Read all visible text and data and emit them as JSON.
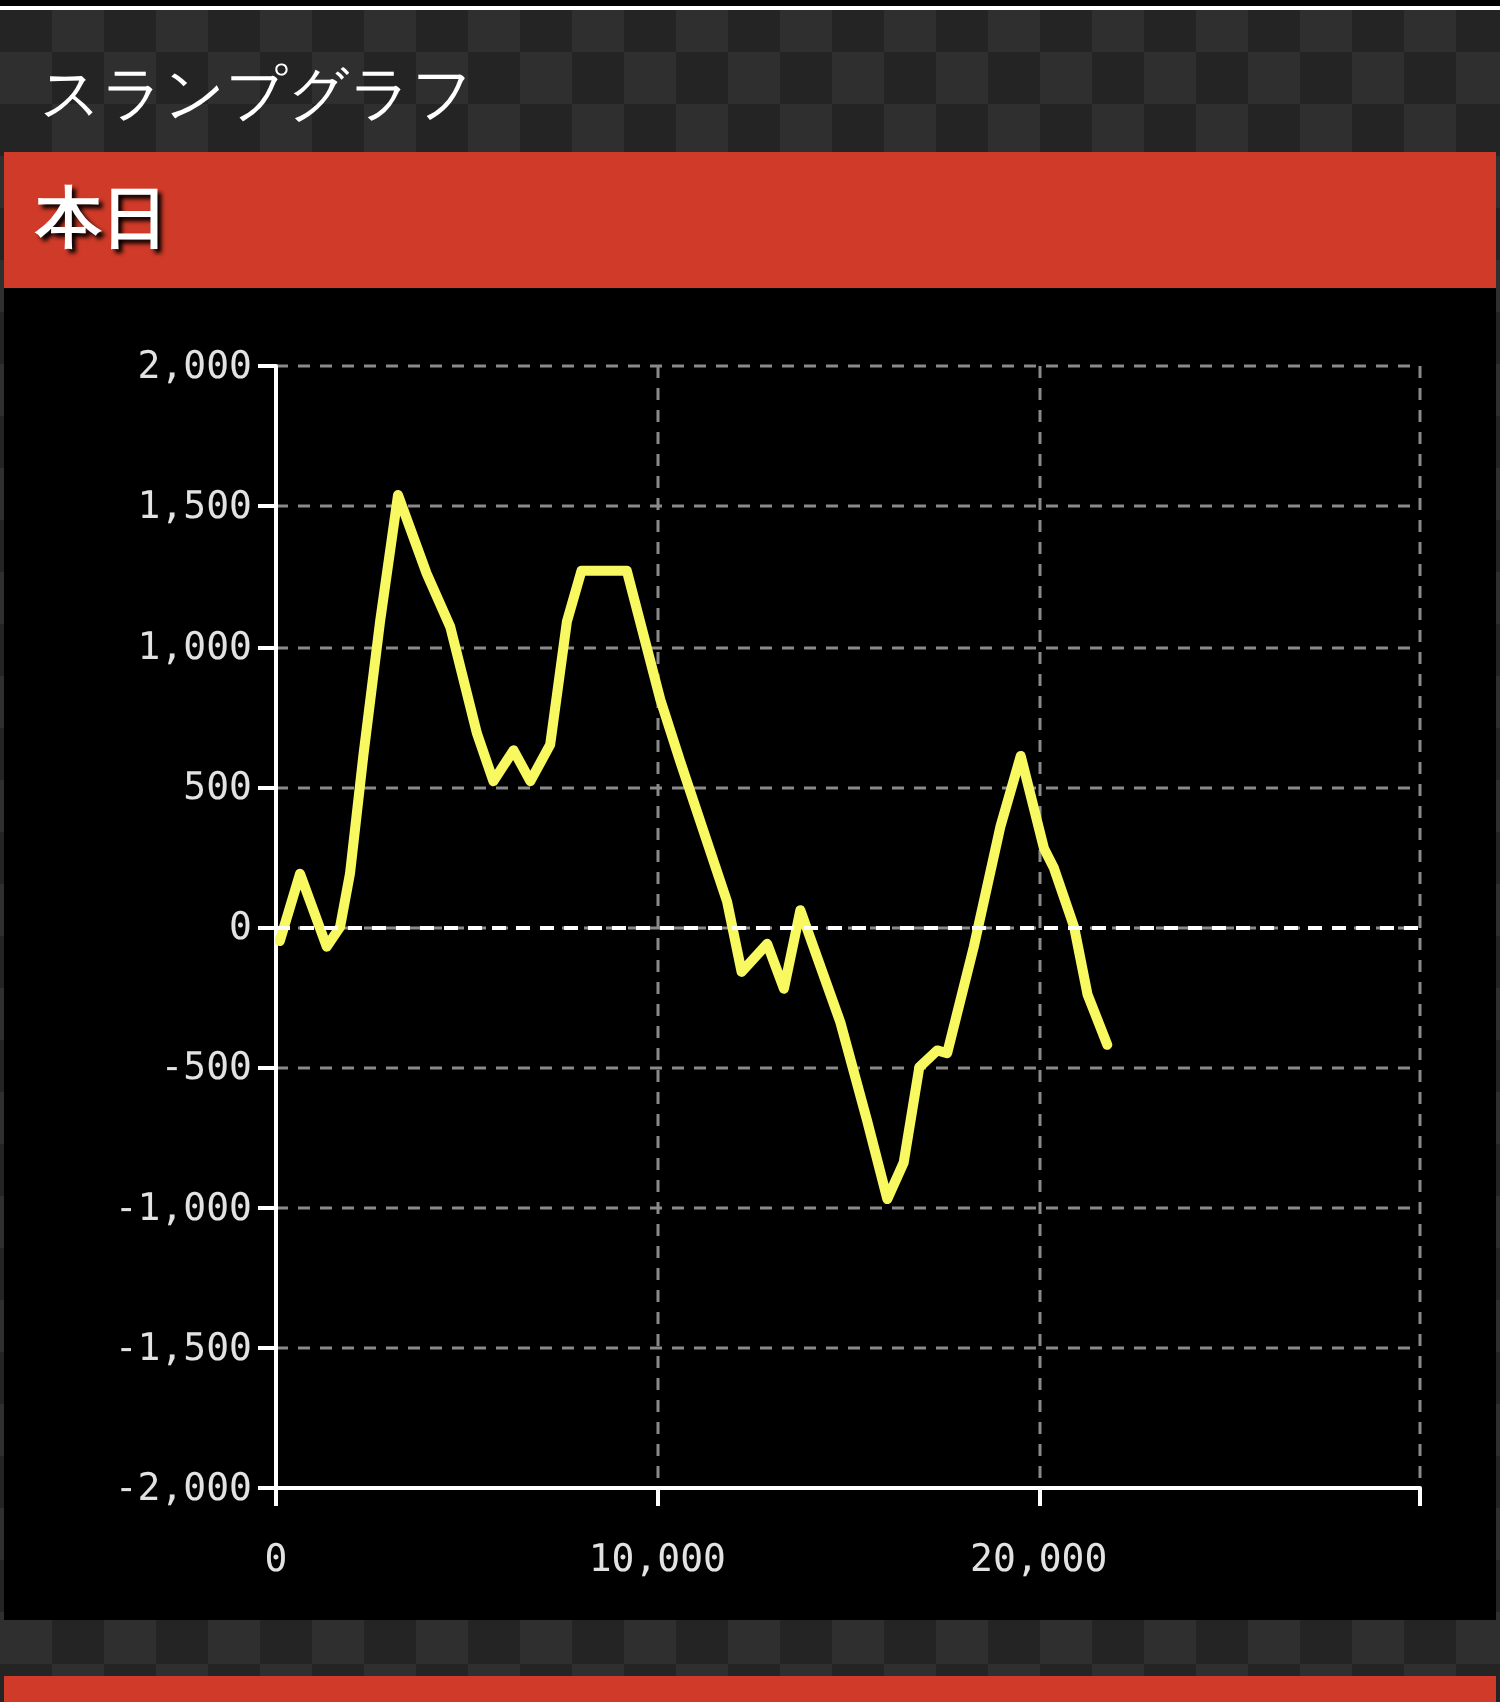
{
  "chart_data": {
    "type": "line",
    "title": "スランプグラフ",
    "subtitle": "本日",
    "x": [
      100,
      630,
      1330,
      1680,
      1940,
      2290,
      2730,
      3200,
      3950,
      4570,
      5270,
      5700,
      6230,
      6670,
      7190,
      7630,
      8010,
      9200,
      10080,
      10600,
      11830,
      12210,
      12880,
      13320,
      13750,
      14800,
      15500,
      16030,
      16460,
      16870,
      17340,
      17600,
      18300,
      19000,
      19530,
      20140,
      20400,
      20930,
      21280,
      21800
    ],
    "series": [
      {
        "color": "#f8f860",
        "values": [
          -50,
          190,
          -70,
          0,
          190,
          610,
          1090,
          1540,
          1260,
          1070,
          690,
          520,
          630,
          520,
          650,
          1090,
          1270,
          1270,
          810,
          590,
          90,
          -160,
          -60,
          -220,
          60,
          -340,
          -690,
          -970,
          -840,
          -500,
          -440,
          -450,
          -70,
          360,
          610,
          280,
          210,
          0,
          -240,
          -420
        ]
      }
    ],
    "xlim": [
      0,
      30000
    ],
    "xticks": [
      0,
      {
        "value": 10000,
        "label": "10,000"
      },
      {
        "value": 20000,
        "label": "20,000"
      },
      {
        "value": 30000,
        "label": null
      }
    ],
    "ylim": [
      -2000,
      2000
    ],
    "yticks": [
      {
        "value": -2000,
        "label": "-2,000"
      },
      {
        "value": -1500,
        "label": "-1,500"
      },
      {
        "value": -1000,
        "label": "-1,000"
      },
      -500,
      0,
      500,
      {
        "value": 1000,
        "label": "1,000"
      },
      {
        "value": 1500,
        "label": "1,500"
      },
      {
        "value": 2000,
        "label": "2,000"
      }
    ],
    "grid": true,
    "marker": "none",
    "line_style": "solid",
    "ref_lines": [
      {
        "axis": "y",
        "value": 0,
        "color": "#ffffff",
        "line_style": "dashed"
      }
    ]
  }
}
